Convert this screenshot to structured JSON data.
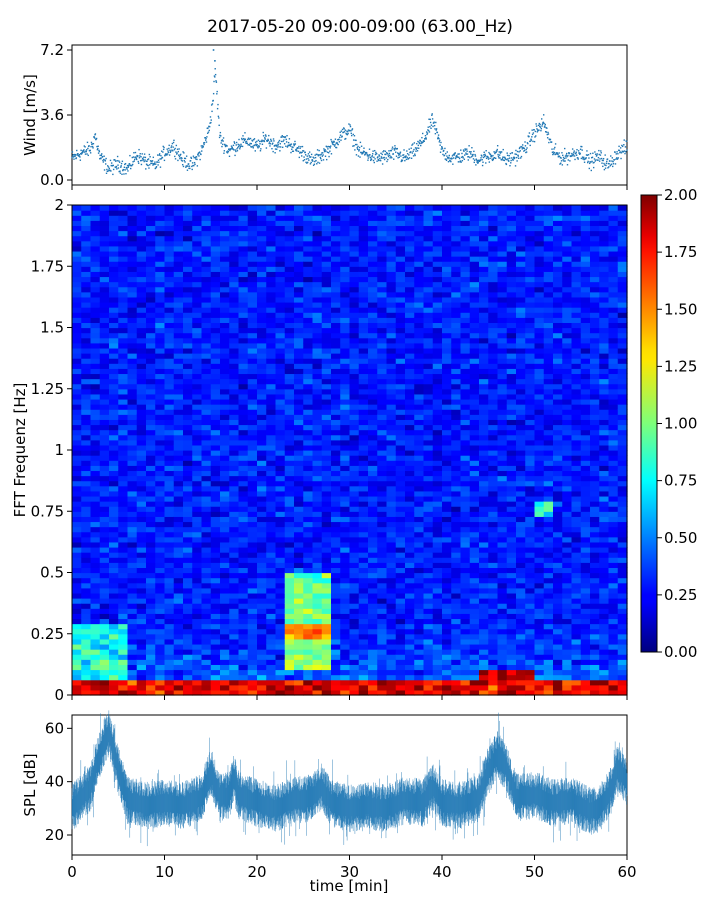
{
  "title": "2017-05-20 09:00-09:00 (63.00_Hz)",
  "chart_data": [
    {
      "type": "scatter",
      "ylabel": "Wind [m/s]",
      "xlim": [
        0,
        60
      ],
      "ylim": [
        0,
        7.2
      ],
      "yticks": [
        "0.0",
        "3.6",
        "7.2"
      ],
      "color": "#1f77b4",
      "profile": [
        [
          0,
          1.2
        ],
        [
          1,
          1.5
        ],
        [
          2,
          1.7
        ],
        [
          2.5,
          2.5
        ],
        [
          3,
          1.3
        ],
        [
          4,
          0.6
        ],
        [
          5,
          0.9
        ],
        [
          6,
          0.6
        ],
        [
          7,
          1.4
        ],
        [
          8,
          1.0
        ],
        [
          9,
          0.8
        ],
        [
          10,
          1.5
        ],
        [
          11,
          1.9
        ],
        [
          12,
          1.1
        ],
        [
          13,
          0.8
        ],
        [
          14,
          1.6
        ],
        [
          14.8,
          2.8
        ],
        [
          15.2,
          4.2
        ],
        [
          15.5,
          6.1
        ],
        [
          16,
          2.3
        ],
        [
          17,
          1.6
        ],
        [
          18,
          2.0
        ],
        [
          19,
          2.2
        ],
        [
          20,
          1.8
        ],
        [
          21,
          2.3
        ],
        [
          22,
          1.9
        ],
        [
          23,
          2.2
        ],
        [
          24,
          1.8
        ],
        [
          25,
          1.5
        ],
        [
          26,
          1.0
        ],
        [
          27,
          1.4
        ],
        [
          28,
          1.8
        ],
        [
          29,
          2.4
        ],
        [
          30,
          2.8
        ],
        [
          31,
          1.6
        ],
        [
          32,
          1.4
        ],
        [
          33,
          1.2
        ],
        [
          34,
          1.3
        ],
        [
          35,
          1.5
        ],
        [
          36,
          1.2
        ],
        [
          37,
          1.6
        ],
        [
          38,
          2.2
        ],
        [
          39,
          3.3
        ],
        [
          40,
          1.6
        ],
        [
          41,
          1.2
        ],
        [
          42,
          1.3
        ],
        [
          43,
          1.5
        ],
        [
          44,
          1.1
        ],
        [
          45,
          1.3
        ],
        [
          46,
          1.5
        ],
        [
          47,
          1.1
        ],
        [
          48,
          1.3
        ],
        [
          49,
          1.8
        ],
        [
          50,
          2.6
        ],
        [
          51,
          3.2
        ],
        [
          52,
          1.6
        ],
        [
          53,
          1.2
        ],
        [
          54,
          1.4
        ],
        [
          55,
          1.6
        ],
        [
          56,
          1.0
        ],
        [
          57,
          1.3
        ],
        [
          58,
          0.8
        ],
        [
          59,
          1.5
        ],
        [
          60,
          1.8
        ]
      ]
    },
    {
      "type": "heatmap",
      "ylabel": "FFT Frequenz [Hz]",
      "xlim": [
        0,
        60
      ],
      "ylim": [
        0,
        2
      ],
      "yticks": [
        "0",
        "0.25",
        "0.5",
        "0.75",
        "1",
        "1.25",
        "1.5",
        "1.75",
        "2"
      ],
      "colormap": "jet",
      "colorbar": {
        "range": [
          0,
          2
        ],
        "ticks": [
          "0.00",
          "0.25",
          "0.50",
          "0.75",
          "1.00",
          "1.25",
          "1.50",
          "1.75",
          "2.00"
        ]
      },
      "background_level": 0.3,
      "low_frequency_band": {
        "freq_range": [
          0,
          0.06
        ],
        "level": 1.8
      },
      "hot_spots": [
        {
          "t_range": [
            0,
            6
          ],
          "f_range": [
            0.06,
            0.3
          ],
          "level": 0.8
        },
        {
          "t_range": [
            23,
            28
          ],
          "f_range": [
            0.1,
            0.5
          ],
          "level": 1.0
        },
        {
          "t_range": [
            23,
            28
          ],
          "f_range": [
            0.22,
            0.3
          ],
          "level": 1.5
        },
        {
          "t_range": [
            44,
            50
          ],
          "f_range": [
            0,
            0.1
          ],
          "level": 1.9
        },
        {
          "t_range": [
            50,
            52
          ],
          "f_range": [
            0.72,
            0.8
          ],
          "level": 0.75
        }
      ]
    },
    {
      "type": "line",
      "ylabel": "SPL [dB]",
      "xlabel": "time [min]",
      "xlim": [
        0,
        60
      ],
      "ylim": [
        12.5,
        65
      ],
      "yticks": [
        "20",
        "40",
        "60"
      ],
      "xticks": [
        "0",
        "10",
        "20",
        "30",
        "40",
        "50",
        "60"
      ],
      "color": "#1f77b4",
      "profile": [
        [
          0,
          30
        ],
        [
          1,
          34
        ],
        [
          2,
          38
        ],
        [
          2.5,
          45
        ],
        [
          3,
          50
        ],
        [
          3.5,
          55
        ],
        [
          4,
          58
        ],
        [
          4.5,
          52
        ],
        [
          5,
          44
        ],
        [
          6,
          33
        ],
        [
          8,
          31
        ],
        [
          10,
          32
        ],
        [
          12,
          31
        ],
        [
          14,
          34
        ],
        [
          15,
          44
        ],
        [
          16,
          34
        ],
        [
          17,
          35
        ],
        [
          17.5,
          42
        ],
        [
          18,
          35
        ],
        [
          20,
          32
        ],
        [
          22,
          30
        ],
        [
          24,
          33
        ],
        [
          26,
          34
        ],
        [
          27,
          38
        ],
        [
          28,
          32
        ],
        [
          30,
          30
        ],
        [
          32,
          31
        ],
        [
          34,
          30
        ],
        [
          36,
          33
        ],
        [
          38,
          32
        ],
        [
          39,
          38
        ],
        [
          40,
          32
        ],
        [
          42,
          31
        ],
        [
          44,
          34
        ],
        [
          45,
          44
        ],
        [
          46,
          50
        ],
        [
          47,
          45
        ],
        [
          48,
          34
        ],
        [
          50,
          35
        ],
        [
          52,
          32
        ],
        [
          54,
          33
        ],
        [
          56,
          29
        ],
        [
          57,
          30
        ],
        [
          58,
          35
        ],
        [
          59,
          45
        ],
        [
          60,
          40
        ]
      ]
    }
  ]
}
